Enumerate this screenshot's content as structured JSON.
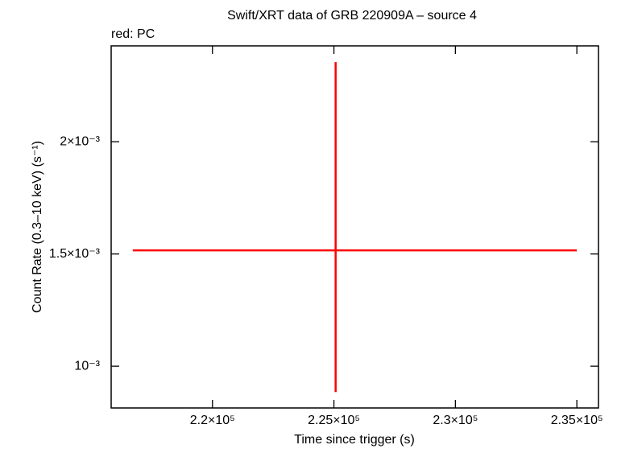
{
  "chart_data": {
    "type": "errorbar",
    "title": "Swift/XRT data of GRB 220909A – source 4",
    "subtitle": "red: PC",
    "x_label": "Time since trigger (s)",
    "y_label": "Count Rate (0.3–10 keV) (s⁻¹)",
    "color": "#ff0000",
    "x": [
      225070
    ],
    "values": [
      0.001516
    ],
    "xerr_low": [
      8350
    ],
    "xerr_high": [
      9930
    ],
    "yerr_low": [
      0.000631
    ],
    "yerr_high": [
      0.000839
    ],
    "xlim": [
      215830,
      235890
    ],
    "ylim": [
      0.000814,
      0.002427
    ],
    "xticks": [
      {
        "value": 220000,
        "label": "2.2×10⁵"
      },
      {
        "value": 225000,
        "label": "2.25×10⁵"
      },
      {
        "value": 230000,
        "label": "2.3×10⁵"
      },
      {
        "value": 235000,
        "label": "2.35×10⁵"
      }
    ],
    "yticks": [
      {
        "value": 0.001,
        "label": "10⁻³"
      },
      {
        "value": 0.0015,
        "label": "1.5×10⁻³"
      },
      {
        "value": 0.002,
        "label": "2×10⁻³"
      }
    ]
  }
}
